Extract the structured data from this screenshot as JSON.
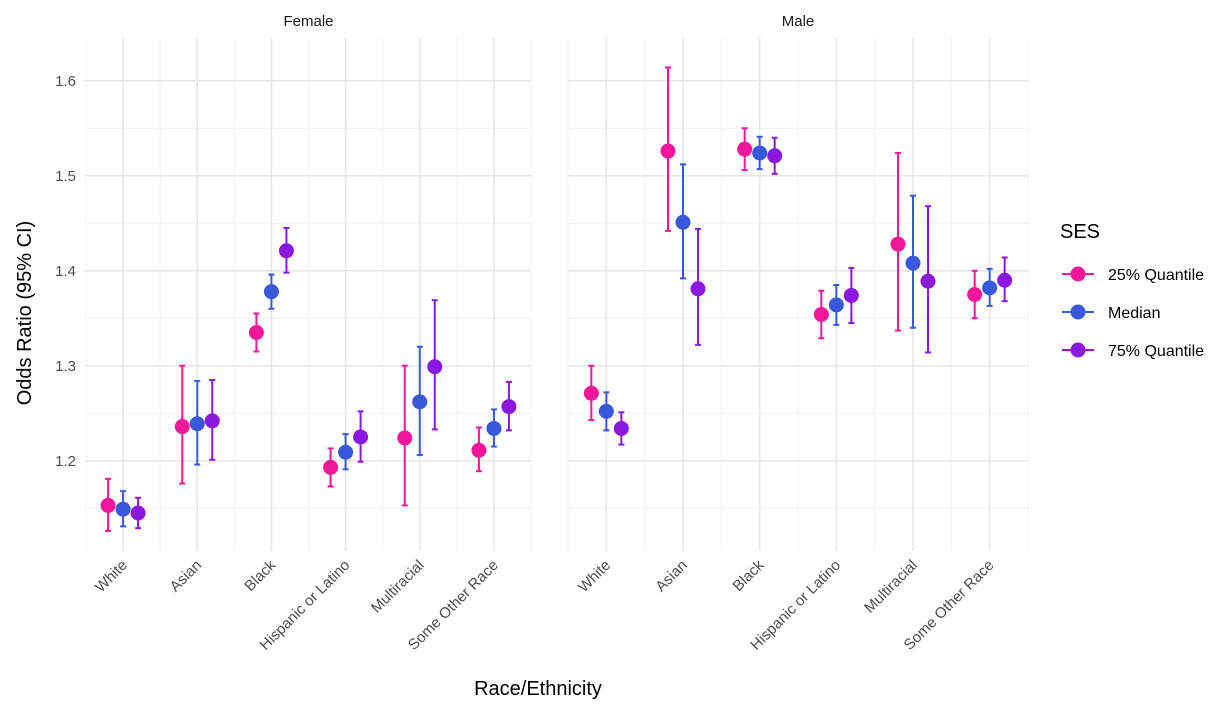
{
  "chart_data": {
    "type": "scatter",
    "xlabel": "Race/Ethnicity",
    "ylabel": "Odds Ratio (95% CI)",
    "ylim": [
      1.105,
      1.645
    ],
    "y_ticks": [
      1.2,
      1.3,
      1.4,
      1.5,
      1.6
    ],
    "y_tick_labels": [
      "1.2",
      "1.3",
      "1.4",
      "1.5",
      "1.6"
    ],
    "categories": [
      "White",
      "Asian",
      "Black",
      "Hispanic or Latino",
      "Multiracial",
      "Some Other Race"
    ],
    "grid": true,
    "legend": {
      "title": "SES",
      "position": "right"
    },
    "colors": {
      "25% Quantile": "#f2169a",
      "Median": "#3858de",
      "75% Quantile": "#8b17e0"
    },
    "series": [
      {
        "name": "25% Quantile"
      },
      {
        "name": "Median"
      },
      {
        "name": "75% Quantile"
      }
    ],
    "panels": [
      {
        "label": "Female",
        "data": {
          "25% Quantile": [
            {
              "y": 1.153,
              "lo": 1.126,
              "hi": 1.181
            },
            {
              "y": 1.236,
              "lo": 1.176,
              "hi": 1.3
            },
            {
              "y": 1.335,
              "lo": 1.315,
              "hi": 1.355
            },
            {
              "y": 1.193,
              "lo": 1.173,
              "hi": 1.213
            },
            {
              "y": 1.224,
              "lo": 1.153,
              "hi": 1.3
            },
            {
              "y": 1.211,
              "lo": 1.189,
              "hi": 1.235
            }
          ],
          "Median": [
            {
              "y": 1.149,
              "lo": 1.131,
              "hi": 1.168
            },
            {
              "y": 1.239,
              "lo": 1.196,
              "hi": 1.284
            },
            {
              "y": 1.378,
              "lo": 1.36,
              "hi": 1.396
            },
            {
              "y": 1.209,
              "lo": 1.191,
              "hi": 1.228
            },
            {
              "y": 1.262,
              "lo": 1.206,
              "hi": 1.32
            },
            {
              "y": 1.234,
              "lo": 1.215,
              "hi": 1.254
            }
          ],
          "75% Quantile": [
            {
              "y": 1.145,
              "lo": 1.129,
              "hi": 1.161
            },
            {
              "y": 1.242,
              "lo": 1.201,
              "hi": 1.285
            },
            {
              "y": 1.421,
              "lo": 1.398,
              "hi": 1.445
            },
            {
              "y": 1.225,
              "lo": 1.199,
              "hi": 1.252
            },
            {
              "y": 1.299,
              "lo": 1.233,
              "hi": 1.369
            },
            {
              "y": 1.257,
              "lo": 1.232,
              "hi": 1.283
            }
          ]
        }
      },
      {
        "label": "Male",
        "data": {
          "25% Quantile": [
            {
              "y": 1.271,
              "lo": 1.243,
              "hi": 1.3
            },
            {
              "y": 1.526,
              "lo": 1.442,
              "hi": 1.614
            },
            {
              "y": 1.528,
              "lo": 1.506,
              "hi": 1.55
            },
            {
              "y": 1.354,
              "lo": 1.329,
              "hi": 1.379
            },
            {
              "y": 1.428,
              "lo": 1.337,
              "hi": 1.524
            },
            {
              "y": 1.375,
              "lo": 1.35,
              "hi": 1.4
            }
          ],
          "Median": [
            {
              "y": 1.252,
              "lo": 1.232,
              "hi": 1.272
            },
            {
              "y": 1.451,
              "lo": 1.392,
              "hi": 1.512
            },
            {
              "y": 1.524,
              "lo": 1.507,
              "hi": 1.541
            },
            {
              "y": 1.364,
              "lo": 1.343,
              "hi": 1.385
            },
            {
              "y": 1.408,
              "lo": 1.34,
              "hi": 1.479
            },
            {
              "y": 1.382,
              "lo": 1.363,
              "hi": 1.402
            }
          ],
          "75% Quantile": [
            {
              "y": 1.234,
              "lo": 1.217,
              "hi": 1.251
            },
            {
              "y": 1.381,
              "lo": 1.322,
              "hi": 1.444
            },
            {
              "y": 1.521,
              "lo": 1.502,
              "hi": 1.54
            },
            {
              "y": 1.374,
              "lo": 1.345,
              "hi": 1.403
            },
            {
              "y": 1.389,
              "lo": 1.314,
              "hi": 1.468
            },
            {
              "y": 1.39,
              "lo": 1.368,
              "hi": 1.414
            }
          ]
        }
      }
    ]
  }
}
